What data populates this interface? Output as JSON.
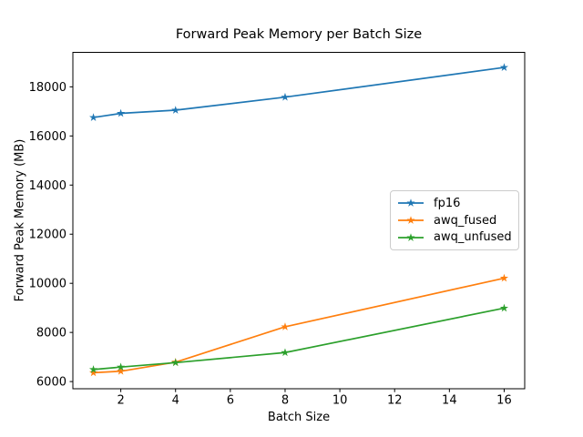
{
  "chart_data": {
    "type": "line",
    "title": "Forward Peak Memory per Batch Size",
    "xlabel": "Batch Size",
    "ylabel": "Forward Peak Memory (MB)",
    "x": [
      1,
      2,
      4,
      8,
      16
    ],
    "series": [
      {
        "name": "fp16",
        "color": "#1f77b4",
        "marker": "star",
        "values": [
          16750,
          16920,
          17050,
          17580,
          18790
        ]
      },
      {
        "name": "awq_fused",
        "color": "#ff7f0e",
        "marker": "star",
        "values": [
          6360,
          6420,
          6790,
          8230,
          10210
        ]
      },
      {
        "name": "awq_unfused",
        "color": "#2ca02c",
        "marker": "star",
        "values": [
          6490,
          6590,
          6770,
          7180,
          8990
        ]
      }
    ],
    "xticks": [
      2,
      4,
      6,
      8,
      10,
      12,
      14,
      16
    ],
    "yticks": [
      6000,
      8000,
      10000,
      12000,
      14000,
      16000,
      18000
    ],
    "xlim": [
      0.25,
      16.75
    ],
    "ylim": [
      5700,
      19400
    ],
    "grid": false,
    "legend_position": "center-right",
    "text_color": "#000000",
    "spine_color": "#000000"
  }
}
